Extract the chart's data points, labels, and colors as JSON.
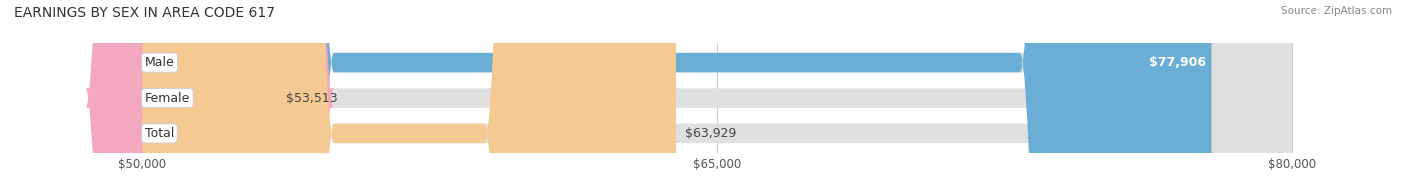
{
  "title": "EARNINGS BY SEX IN AREA CODE 617",
  "source": "Source: ZipAtlas.com",
  "categories": [
    "Male",
    "Female",
    "Total"
  ],
  "values": [
    77906,
    53513,
    63929
  ],
  "bar_colors": [
    "#6aaed6",
    "#f4a8c0",
    "#f5c992"
  ],
  "bar_bg_color": "#e0e0e0",
  "x_min": 50000,
  "x_max": 80000,
  "xticks": [
    50000,
    65000,
    80000
  ],
  "xtick_labels": [
    "$50,000",
    "$65,000",
    "$80,000"
  ],
  "background_color": "#ffffff",
  "bar_height": 0.55,
  "label_fontsize": 9,
  "title_fontsize": 10,
  "source_fontsize": 7.5
}
